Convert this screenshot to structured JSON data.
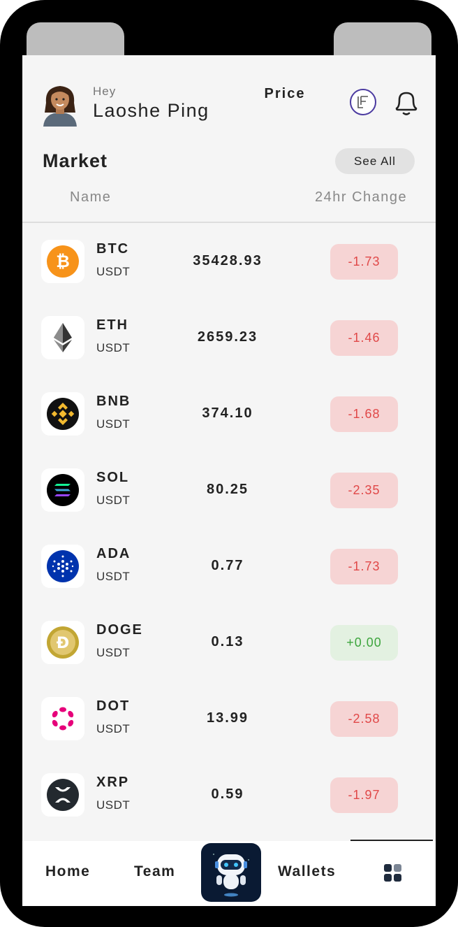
{
  "header": {
    "greeting": "Hey",
    "user_name": "Laoshe Ping"
  },
  "market": {
    "title": "Market",
    "see_all_label": "See All",
    "columns": [
      "Name",
      "Price",
      "24hr Change"
    ]
  },
  "coins": [
    {
      "symbol": "BTC",
      "quote": "USDT",
      "price": "35428.93",
      "change": "-1.73",
      "icon": "bitcoin-icon",
      "color": "#f7931a"
    },
    {
      "symbol": "ETH",
      "quote": "USDT",
      "price": "2659.23",
      "change": "-1.46",
      "icon": "ethereum-icon",
      "color": "#343434"
    },
    {
      "symbol": "BNB",
      "quote": "USDT",
      "price": "374.10",
      "change": "-1.68",
      "icon": "bnb-icon",
      "color": "#f3ba2f"
    },
    {
      "symbol": "SOL",
      "quote": "USDT",
      "price": "80.25",
      "change": "-2.35",
      "icon": "solana-icon",
      "color": "#000000"
    },
    {
      "symbol": "ADA",
      "quote": "USDT",
      "price": "0.77",
      "change": "-1.73",
      "icon": "cardano-icon",
      "color": "#0033ad"
    },
    {
      "symbol": "DOGE",
      "quote": "USDT",
      "price": "0.13",
      "change": "+0.00",
      "icon": "dogecoin-icon",
      "color": "#c2a633"
    },
    {
      "symbol": "DOT",
      "quote": "USDT",
      "price": "13.99",
      "change": "-2.58",
      "icon": "polkadot-icon",
      "color": "#e6007a"
    },
    {
      "symbol": "XRP",
      "quote": "USDT",
      "price": "0.59",
      "change": "-1.97",
      "icon": "xrp-icon",
      "color": "#23292f"
    }
  ],
  "colors": {
    "negative_bg": "#f6d4d4",
    "negative_text": "#e04848",
    "positive_bg": "#e3f1e1",
    "positive_text": "#3da53d"
  },
  "nav": {
    "home": "Home",
    "team": "Team",
    "wallets": "Wallets"
  }
}
